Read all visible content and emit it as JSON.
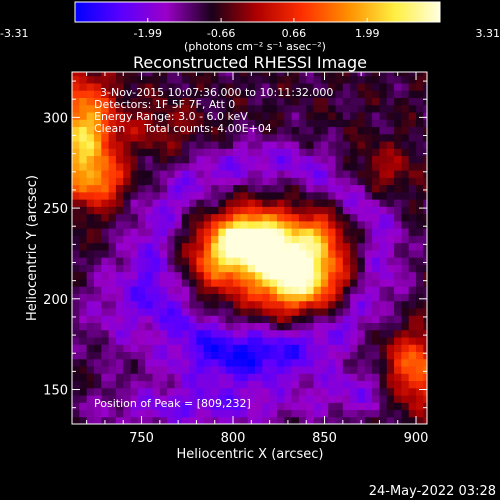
{
  "colorbar": {
    "ticks": [
      "-3.31",
      "-1.99",
      "-0.66",
      "0.66",
      "1.99",
      "3.31"
    ],
    "tick_values": [
      -3.31,
      -1.99,
      -0.66,
      0.66,
      1.99,
      3.31
    ],
    "range": [
      -3.31,
      3.31
    ],
    "units": "(photons cm⁻² s⁻¹ asec⁻²)",
    "colors": [
      "#0000ff",
      "#5a00ff",
      "#9a00c8",
      "#1a001a",
      "#b00000",
      "#ff3000",
      "#ff9000",
      "#ffee40",
      "#ffffe0"
    ]
  },
  "chart_data": {
    "type": "heatmap",
    "title": "Reconstructed RHESSI Image",
    "xlabel": "Heliocentric X (arcsec)",
    "ylabel": "Heliocentric Y (arcsec)",
    "xlim": [
      712,
      906
    ],
    "ylim": [
      131,
      325
    ],
    "xticks": [
      750,
      800,
      850,
      900
    ],
    "yticks": [
      150,
      200,
      250,
      300
    ],
    "xtick_labels": [
      "750",
      "800",
      "850",
      "900"
    ],
    "ytick_labels": [
      "150",
      "200",
      "250",
      "300"
    ],
    "peaks": [
      {
        "x": 809,
        "y": 232,
        "value": 3.31
      },
      {
        "x": 835,
        "y": 210,
        "value": 2.5
      }
    ],
    "annotations": [
      "3-Nov-2015 10:07:36.000 to 10:11:32.000",
      "Detectors: 1F 5F 7F, Att 0",
      "Energy Range: 3.0 - 6.0 keV",
      "Clean",
      "Total counts: 4.00E+04",
      "Position of Peak = [809,232]"
    ]
  },
  "timestamp": "24-May-2022 03:28"
}
